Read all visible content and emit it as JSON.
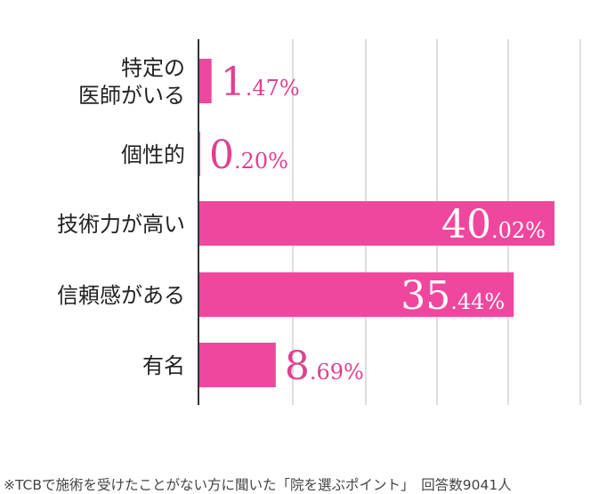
{
  "chart_data": {
    "type": "bar",
    "orientation": "horizontal",
    "categories": [
      [
        "特定の",
        "医師がいる"
      ],
      [
        "個性的"
      ],
      [
        "技術力が高い"
      ],
      [
        "信頼感がある"
      ],
      [
        "有名"
      ]
    ],
    "values": [
      1.47,
      0.2,
      40.02,
      35.44,
      8.69
    ],
    "value_labels": [
      {
        "int": "1",
        "dec": ".47%"
      },
      {
        "int": "0",
        "dec": ".20%"
      },
      {
        "int": "40",
        "dec": ".02%"
      },
      {
        "int": "35",
        "dec": ".44%"
      },
      {
        "int": "8",
        "dec": ".69%"
      }
    ],
    "xlim": [
      0,
      43
    ],
    "grid": true,
    "bar_color": "#f0479e",
    "label_color_outside": "#e0408f",
    "label_color_inside": "#ffffff"
  },
  "footnote": "※TCBで施術を受けたことがない方に聞いた「院を選ぶポイント」　回答数9041人"
}
